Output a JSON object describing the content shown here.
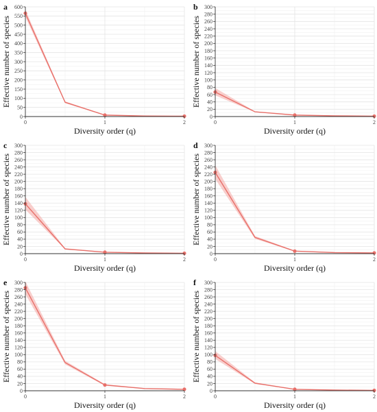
{
  "colors": {
    "line": "#e8706a",
    "band": "#f4a8a4",
    "grid_major": "#e4e4e4",
    "grid_minor": "#f1f1f1",
    "axis": "#333333"
  },
  "chart_data": [
    {
      "panel": "a",
      "type": "line",
      "xlabel": "Diversity order (q)",
      "ylabel": "Effective number of species",
      "xlim": [
        0,
        2
      ],
      "ylim": [
        0,
        600
      ],
      "xticks": [
        0,
        1,
        2
      ],
      "yticks": [
        0,
        50,
        100,
        150,
        200,
        250,
        300,
        350,
        400,
        450,
        500,
        550,
        600
      ],
      "x": [
        0,
        0.5,
        1,
        1.5,
        2
      ],
      "y": [
        565,
        78,
        8,
        3,
        2
      ],
      "y_lower": [
        545,
        73,
        6,
        2,
        1
      ],
      "y_upper": [
        585,
        83,
        10,
        4,
        3
      ],
      "observed_points": [
        [
          0,
          565
        ],
        [
          1,
          8
        ],
        [
          2,
          2
        ]
      ]
    },
    {
      "panel": "b",
      "type": "line",
      "xlabel": "Diversity order (q)",
      "ylabel": "Effective number of species",
      "xlim": [
        0,
        2
      ],
      "ylim": [
        0,
        300
      ],
      "xticks": [
        0,
        1,
        2
      ],
      "yticks": [
        0,
        20,
        40,
        60,
        80,
        100,
        120,
        140,
        160,
        180,
        200,
        220,
        240,
        260,
        280,
        300
      ],
      "x": [
        0,
        0.5,
        1,
        1.5,
        2
      ],
      "y": [
        67,
        13,
        4,
        2,
        1
      ],
      "y_lower": [
        58,
        12,
        3,
        1.5,
        0.5
      ],
      "y_upper": [
        78,
        14,
        5,
        2.5,
        1.5
      ],
      "observed_points": [
        [
          0,
          67
        ],
        [
          1,
          4
        ],
        [
          2,
          1
        ]
      ]
    },
    {
      "panel": "c",
      "type": "line",
      "xlabel": "Diversity order (q)",
      "ylabel": "Effective number of species",
      "xlim": [
        0,
        2
      ],
      "ylim": [
        0,
        300
      ],
      "xticks": [
        0,
        1,
        2
      ],
      "yticks": [
        0,
        20,
        40,
        60,
        80,
        100,
        120,
        140,
        160,
        180,
        200,
        220,
        240,
        260,
        280,
        300
      ],
      "x": [
        0,
        0.5,
        1,
        1.5,
        2
      ],
      "y": [
        138,
        13,
        4,
        2,
        1
      ],
      "y_lower": [
        122,
        12,
        3,
        1.5,
        0.5
      ],
      "y_upper": [
        157,
        15,
        5,
        2.5,
        1.5
      ],
      "observed_points": [
        [
          0,
          138
        ],
        [
          1,
          4
        ],
        [
          2,
          1
        ]
      ]
    },
    {
      "panel": "d",
      "type": "line",
      "xlabel": "Diversity order (q)",
      "ylabel": "Effective number of species",
      "xlim": [
        0,
        2
      ],
      "ylim": [
        0,
        300
      ],
      "xticks": [
        0,
        1,
        2
      ],
      "yticks": [
        0,
        20,
        40,
        60,
        80,
        100,
        120,
        140,
        160,
        180,
        200,
        220,
        240,
        260,
        280,
        300
      ],
      "x": [
        0,
        0.5,
        1,
        1.5,
        2
      ],
      "y": [
        225,
        45,
        7,
        3,
        2
      ],
      "y_lower": [
        207,
        41,
        6,
        2,
        1
      ],
      "y_upper": [
        245,
        49,
        8,
        4,
        3
      ],
      "observed_points": [
        [
          0,
          225
        ],
        [
          1,
          7
        ],
        [
          2,
          2
        ]
      ]
    },
    {
      "panel": "e",
      "type": "line",
      "xlabel": "Diversity order (q)",
      "ylabel": "Effective number of species",
      "xlim": [
        0,
        2
      ],
      "ylim": [
        0,
        300
      ],
      "xticks": [
        0,
        1,
        2
      ],
      "yticks": [
        0,
        20,
        40,
        60,
        80,
        100,
        120,
        140,
        160,
        180,
        200,
        220,
        240,
        260,
        280,
        300
      ],
      "x": [
        0,
        0.5,
        1,
        1.5,
        2
      ],
      "y": [
        285,
        78,
        16,
        6,
        4
      ],
      "y_lower": [
        268,
        73,
        14,
        5,
        3
      ],
      "y_upper": [
        303,
        83,
        18,
        7,
        5
      ],
      "observed_points": [
        [
          0,
          285
        ],
        [
          1,
          16
        ],
        [
          2,
          4
        ]
      ]
    },
    {
      "panel": "f",
      "type": "line",
      "xlabel": "Diversity order (q)",
      "ylabel": "Effective number of species",
      "xlim": [
        0,
        2
      ],
      "ylim": [
        0,
        300
      ],
      "xticks": [
        0,
        1,
        2
      ],
      "yticks": [
        0,
        20,
        40,
        60,
        80,
        100,
        120,
        140,
        160,
        180,
        200,
        220,
        240,
        260,
        280,
        300
      ],
      "x": [
        0,
        0.5,
        1,
        1.5,
        2
      ],
      "y": [
        98,
        21,
        4,
        2,
        1
      ],
      "y_lower": [
        88,
        19,
        3,
        1.5,
        0.5
      ],
      "y_upper": [
        110,
        23,
        5,
        2.5,
        1.5
      ],
      "observed_points": [
        [
          0,
          98
        ],
        [
          1,
          4
        ],
        [
          2,
          1
        ]
      ]
    }
  ]
}
